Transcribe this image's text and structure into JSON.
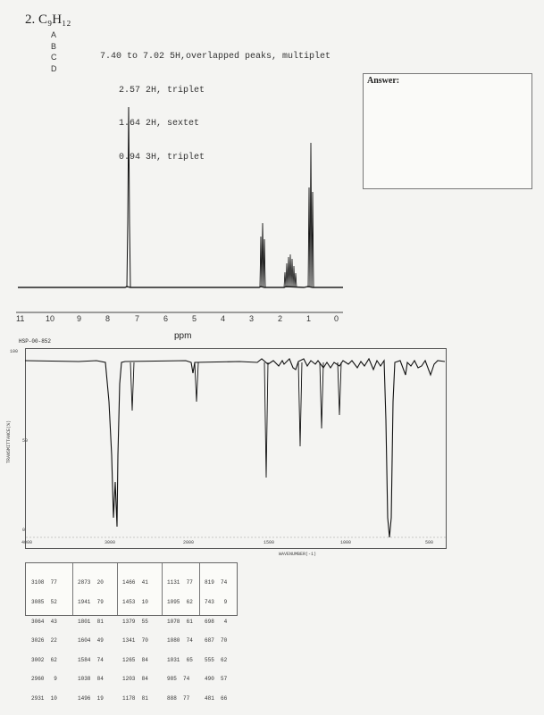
{
  "problem": {
    "number_formula": "2. C₉H₁₂",
    "letters": [
      "A",
      "B",
      "C",
      "D"
    ],
    "nmr_lines": [
      "7.40 to 7.02 5H,overlapped peaks, multiplet",
      "2.57 2H, triplet",
      "1.64 2H, sextet",
      "0.94 3H, triplet"
    ]
  },
  "answer": {
    "label": "Answer:"
  },
  "nmr_axis": {
    "ticks": [
      "11",
      "10",
      "9",
      "8",
      "7",
      "6",
      "5",
      "4",
      "3",
      "2",
      "1",
      "0"
    ],
    "unit_label": "ppm"
  },
  "ir": {
    "sample_code": "HSP-00-852",
    "top_label": "100",
    "mid_label": "50",
    "bottom_label": "0",
    "y_label": "TRANSMITTANCE(%)",
    "x_ticks": [
      "4000",
      "3000",
      "2000",
      "1500",
      "1000",
      "500"
    ],
    "x_label": "WAVENUMBER(-1)",
    "peak_table": [
      [
        "3108  77",
        "3085  52",
        "3064  43",
        "3026  22",
        "3002  62",
        "2960   9",
        "2931  10"
      ],
      [
        "2873  20",
        "1941  79",
        "1801  81",
        "1604  49",
        "1584  74",
        "1038  84",
        "1496  19"
      ],
      [
        "1466  41",
        "1453  10",
        "1379  55",
        "1341  70",
        "1265  84",
        "1203  84",
        "1178  81"
      ],
      [
        "1131  77",
        "1095  62",
        "1078  61",
        "1080  74",
        "1031  65",
        "985  74",
        "888  77"
      ],
      [
        "819  74",
        "743   9",
        "698   4",
        "687  70",
        "555  62",
        "490  57",
        "481  66"
      ]
    ]
  }
}
